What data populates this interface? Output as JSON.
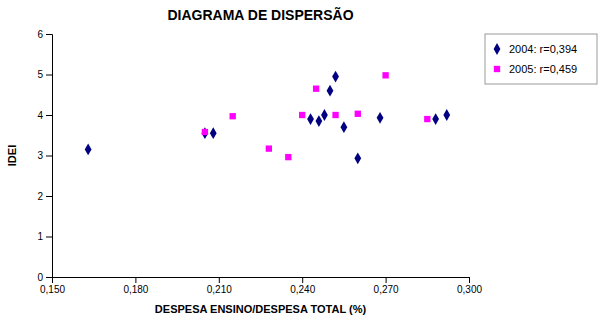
{
  "chart_data": {
    "type": "scatter",
    "title": "DIAGRAMA DE DISPERSÃO",
    "xlabel": "DESPESA ENSINO/DESPESA TOTAL (%)",
    "ylabel": "IDEI",
    "xlim": [
      0.15,
      0.3
    ],
    "ylim": [
      0,
      6
    ],
    "xticks": [
      {
        "value": 0.15,
        "label": "0,150"
      },
      {
        "value": 0.18,
        "label": "0,180"
      },
      {
        "value": 0.21,
        "label": "0,210"
      },
      {
        "value": 0.24,
        "label": "0,240"
      },
      {
        "value": 0.27,
        "label": "0,270"
      },
      {
        "value": 0.3,
        "label": "0,300"
      }
    ],
    "yticks": [
      0,
      1,
      2,
      3,
      4,
      5,
      6
    ],
    "grid": false,
    "legend": "right",
    "series": [
      {
        "name": "2004: r=0,394",
        "color": "#000080",
        "marker": "diamond",
        "x": [
          0.163,
          0.205,
          0.208,
          0.243,
          0.246,
          0.248,
          0.25,
          0.252,
          0.255,
          0.26,
          0.268,
          0.288,
          0.292
        ],
        "values": [
          3.15,
          3.55,
          3.55,
          3.9,
          3.85,
          4.0,
          4.6,
          4.95,
          3.7,
          2.93,
          3.93,
          3.9,
          4.0
        ]
      },
      {
        "name": "2005: r=0,459",
        "color": "#ff00ff",
        "marker": "square",
        "x": [
          0.205,
          0.215,
          0.228,
          0.235,
          0.24,
          0.245,
          0.252,
          0.26,
          0.27,
          0.285
        ],
        "values": [
          3.58,
          3.97,
          3.17,
          2.96,
          4.0,
          4.65,
          4.0,
          4.03,
          4.98,
          3.9
        ]
      }
    ]
  }
}
